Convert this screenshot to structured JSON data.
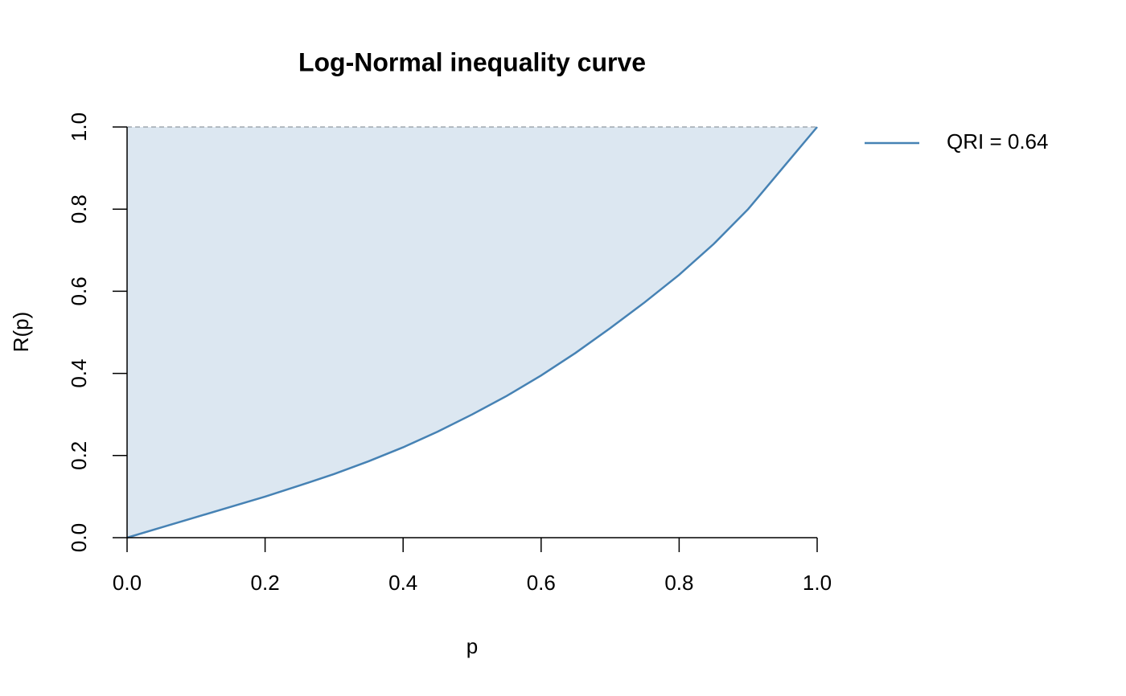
{
  "chart_data": {
    "type": "line",
    "title": "Log-Normal inequality curve",
    "xlabel": "p",
    "ylabel": "R(p)",
    "x": [
      0,
      0.05,
      0.1,
      0.15,
      0.2,
      0.25,
      0.3,
      0.35,
      0.4,
      0.45,
      0.5,
      0.55,
      0.6,
      0.65,
      0.7,
      0.75,
      0.8,
      0.85,
      0.9,
      0.95,
      1.0
    ],
    "series": [
      {
        "name": "QRI = 0.64",
        "color": "#4682b4",
        "values": [
          0,
          0.025,
          0.05,
          0.075,
          0.1,
          0.127,
          0.155,
          0.186,
          0.22,
          0.258,
          0.3,
          0.345,
          0.395,
          0.45,
          0.51,
          0.573,
          0.64,
          0.715,
          0.8,
          0.9,
          1.0
        ]
      }
    ],
    "fill_color": "#dce7f1",
    "reference_line": 1,
    "reference_color": "#a0a8b0",
    "xlim": [
      0,
      1
    ],
    "ylim": [
      0,
      1
    ],
    "xticks": [
      {
        "value": 0,
        "label": "0.0"
      },
      {
        "value": 0.2,
        "label": "0.2"
      },
      {
        "value": 0.4,
        "label": "0.4"
      },
      {
        "value": 0.6,
        "label": "0.6"
      },
      {
        "value": 0.8,
        "label": "0.8"
      },
      {
        "value": 1,
        "label": "1.0"
      }
    ],
    "yticks": [
      {
        "value": 0,
        "label": "0.0"
      },
      {
        "value": 0.2,
        "label": "0.2"
      },
      {
        "value": 0.4,
        "label": "0.4"
      },
      {
        "value": 0.6,
        "label": "0.6"
      },
      {
        "value": 0.8,
        "label": "0.8"
      },
      {
        "value": 1,
        "label": "1.0"
      }
    ],
    "legend": "top-right"
  }
}
